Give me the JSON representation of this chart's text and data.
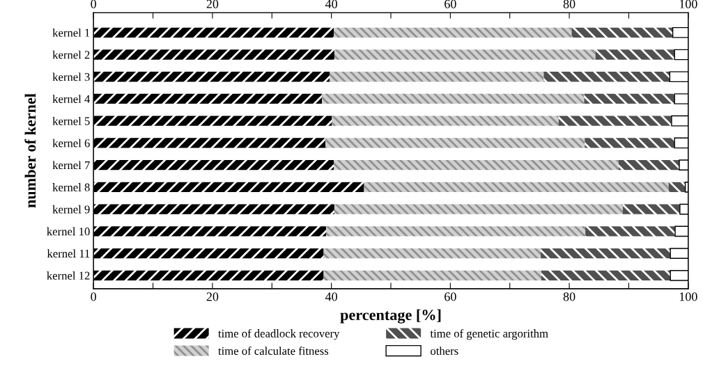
{
  "chart_data": {
    "type": "bar",
    "orientation": "horizontal",
    "stacked": true,
    "xlabel": "percentage [%]",
    "ylabel": "number of kernel",
    "categories": [
      "kernel 1",
      "kernel 2",
      "kernel 3",
      "kernel 4",
      "kernel 5",
      "kernel 6",
      "kernel 7",
      "kernel 8",
      "kernel 9",
      "kernel 10",
      "kernel 11",
      "kernel 12"
    ],
    "series": [
      {
        "name": "time of deadlock recovery",
        "color": "#000000",
        "values": [
          40.4,
          40.5,
          39.7,
          38.4,
          40.1,
          39.0,
          40.4,
          45.5,
          40.5,
          39.1,
          38.7,
          38.7
        ]
      },
      {
        "name": "time of calculate fitness",
        "color": "#d0d0d0",
        "values": [
          40.0,
          43.9,
          36.0,
          44.1,
          38.1,
          43.6,
          47.9,
          51.2,
          48.5,
          43.6,
          36.5,
          36.6
        ]
      },
      {
        "name": "time of genetic argorithm",
        "color": "#505050",
        "values": [
          17.0,
          13.3,
          21.2,
          15.2,
          19.0,
          15.1,
          10.2,
          2.8,
          9.6,
          15.1,
          21.8,
          21.7
        ]
      },
      {
        "name": "others",
        "color": "#ffffff",
        "values": [
          2.6,
          2.3,
          3.1,
          2.3,
          2.8,
          2.3,
          1.5,
          0.5,
          1.4,
          2.2,
          3.0,
          3.0
        ]
      }
    ],
    "xlim": [
      0,
      100
    ],
    "xticks": [
      0,
      {
        "value": 10,
        "label": null
      },
      20,
      {
        "value": 30,
        "label": null
      },
      40,
      {
        "value": 50,
        "label": null
      },
      60,
      {
        "value": 70,
        "label": null
      },
      80,
      {
        "value": 90,
        "label": null
      },
      100
    ],
    "x2lim": [
      0,
      100
    ],
    "x2ticks": [
      0,
      {
        "value": 10,
        "label": null
      },
      20,
      {
        "value": 30,
        "label": null
      },
      40,
      {
        "value": 50,
        "label": null
      },
      60,
      {
        "value": 70,
        "label": null
      },
      80,
      {
        "value": 90,
        "label": null
      },
      100
    ],
    "grid": false,
    "legend": "bottom"
  }
}
